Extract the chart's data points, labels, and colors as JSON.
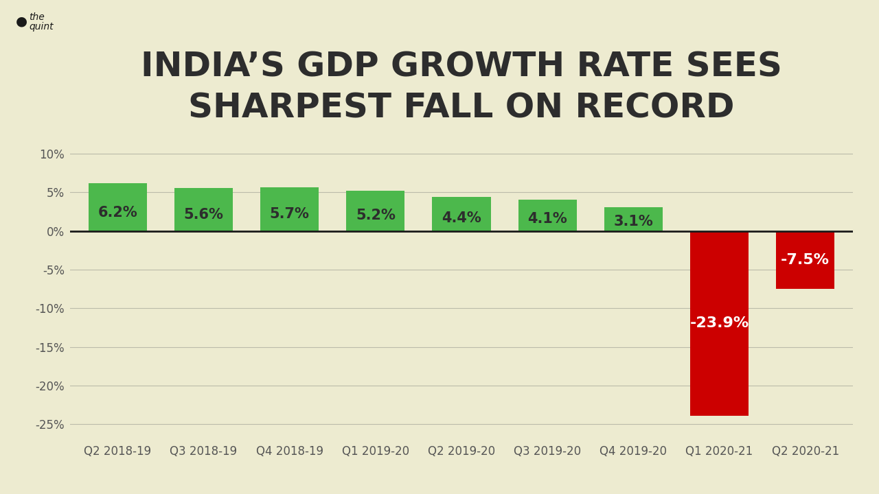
{
  "title_line1": "INDIA’S GDP GROWTH RATE SEES",
  "title_line2": "SHARPEST FALL ON RECORD",
  "categories": [
    "Q2 2018-19",
    "Q3 2018-19",
    "Q4 2018-19",
    "Q1 2019-20",
    "Q2 2019-20",
    "Q3 2019-20",
    "Q4 2019-20",
    "Q1 2020-21",
    "Q2 2020-21"
  ],
  "values": [
    6.2,
    5.6,
    5.7,
    5.2,
    4.4,
    4.1,
    3.1,
    -23.9,
    -7.5
  ],
  "labels": [
    "6.2%",
    "5.6%",
    "5.7%",
    "5.2%",
    "4.4%",
    "4.1%",
    "3.1%",
    "-23.9%",
    "-7.5%"
  ],
  "bar_colors": [
    "#4cb84c",
    "#4cb84c",
    "#4cb84c",
    "#4cb84c",
    "#4cb84c",
    "#4cb84c",
    "#4cb84c",
    "#cc0000",
    "#cc0000"
  ],
  "label_colors_positive": "#2d2d2d",
  "label_colors_negative": "#ffffff",
  "background_color": "#edebd0",
  "title_color": "#2d2d2d",
  "axis_color": "#555555",
  "grid_color": "#bbbbaa",
  "ylim": [
    -27,
    12
  ],
  "yticks": [
    -25,
    -20,
    -15,
    -10,
    -5,
    0,
    5,
    10
  ],
  "ytick_labels": [
    "-25%",
    "-20%",
    "-15%",
    "-10%",
    "-5%",
    "0%",
    "5%",
    "10%"
  ],
  "title_fontsize": 36,
  "label_fontsize": 15,
  "tick_fontsize": 12,
  "bar_width": 0.68
}
